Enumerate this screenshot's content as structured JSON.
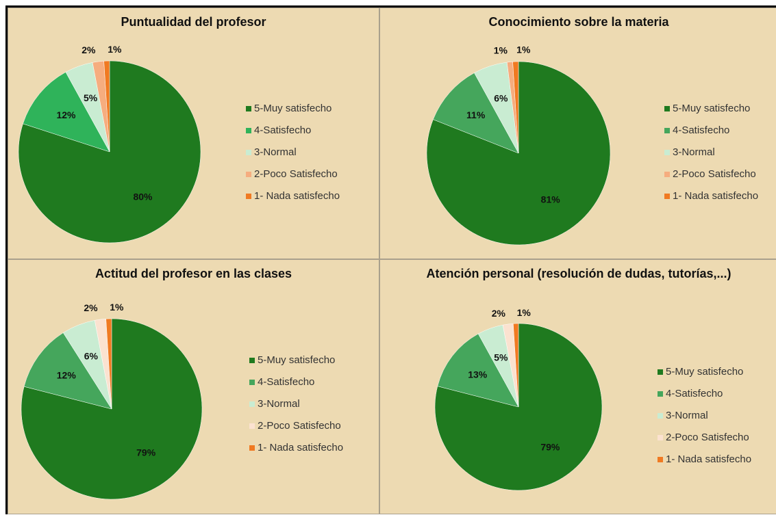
{
  "chart_data": [
    {
      "type": "pie",
      "title": "Puntualidad del profesor",
      "categories": [
        "5-Muy satisfecho",
        "4-Satisfecho",
        "3-Normal",
        "2-Poco Satisfecho",
        "1- Nada satisfecho"
      ],
      "values": [
        80,
        12,
        5,
        2,
        1
      ],
      "value_labels": [
        "80%",
        "12%",
        "5%",
        "2%",
        "1%"
      ],
      "colors": [
        "#1f7a1f",
        "#2fb35a",
        "#c9ecd2",
        "#f6ad7f",
        "#f07a22"
      ]
    },
    {
      "type": "pie",
      "title": "Conocimiento sobre la materia",
      "categories": [
        "5-Muy satisfecho",
        "4-Satisfecho",
        "3-Normal",
        "2-Poco Satisfecho",
        "1- Nada satisfecho"
      ],
      "values": [
        81,
        11,
        6,
        1,
        1
      ],
      "value_labels": [
        "81%",
        "11%",
        "6%",
        "1%",
        "1%"
      ],
      "colors": [
        "#1f7a1f",
        "#45a65c",
        "#c9ecd2",
        "#f6ad7f",
        "#f07a22"
      ]
    },
    {
      "type": "pie",
      "title": "Actitud del profesor en las clases",
      "categories": [
        "5-Muy satisfecho",
        "4-Satisfecho",
        "3-Normal",
        "2-Poco Satisfecho",
        "1- Nada satisfecho"
      ],
      "values": [
        79,
        12,
        6,
        2,
        1
      ],
      "value_labels": [
        "79%",
        "12%",
        "6%",
        "2%",
        "1%"
      ],
      "colors": [
        "#1f7a1f",
        "#45a65c",
        "#c9ecd2",
        "#fbe2d0",
        "#f07a22"
      ]
    },
    {
      "type": "pie",
      "title": "Atención personal (resolución de dudas, tutorías,...)",
      "categories": [
        "5-Muy satisfecho",
        "4-Satisfecho",
        "3-Normal",
        "2-Poco Satisfecho",
        "1- Nada satisfecho"
      ],
      "values": [
        79,
        13,
        5,
        2,
        1
      ],
      "value_labels": [
        "79%",
        "13%",
        "5%",
        "2%",
        "1%"
      ],
      "colors": [
        "#1f7a1f",
        "#45a65c",
        "#c9ecd2",
        "#fbe2d0",
        "#f07a22"
      ]
    }
  ]
}
